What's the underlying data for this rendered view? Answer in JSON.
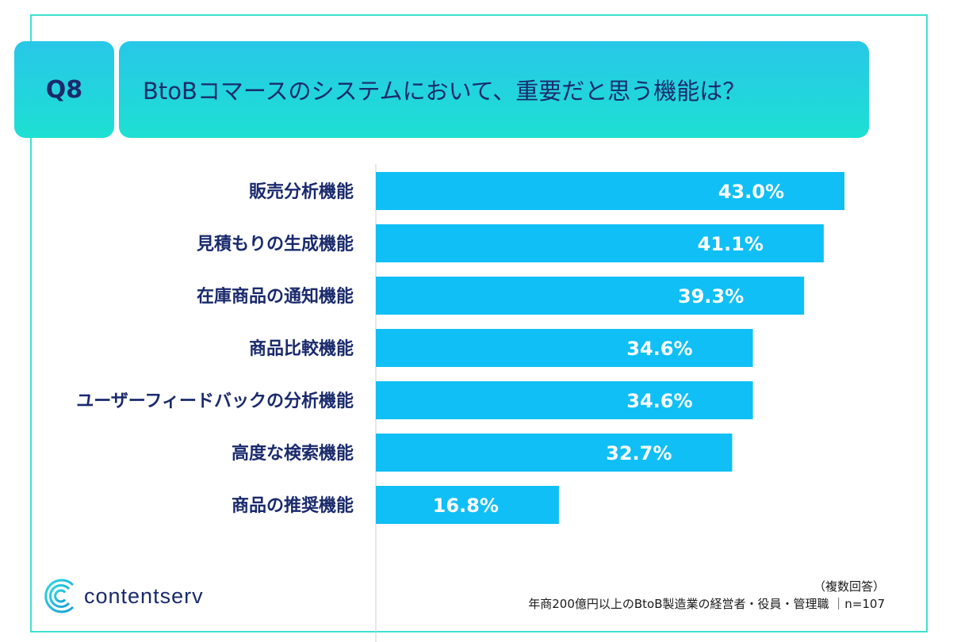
{
  "header": {
    "question_id": "Q8",
    "question_text": "BtoBコマースのシステムにおいて、重要だと思う機能は？"
  },
  "chart_data": {
    "type": "bar",
    "orientation": "horizontal",
    "categories": [
      "販売分析機能",
      "見積もりの生成機能",
      "在庫商品の通知機能",
      "商品比較機能",
      "ユーザーフィードバックの分析機能",
      "高度な検索機能",
      "商品の推奨機能"
    ],
    "values": [
      43.0,
      41.1,
      39.3,
      34.6,
      34.6,
      32.7,
      16.8
    ],
    "value_labels": [
      "43.0%",
      "41.1%",
      "39.3%",
      "34.6%",
      "34.6%",
      "32.7%",
      "16.8%"
    ],
    "unit": "%",
    "xlim": [
      0,
      43.0
    ],
    "title": "",
    "xlabel": "",
    "ylabel": ""
  },
  "footer": {
    "brand": "contentserv",
    "note_line1": "（複数回答）",
    "note_line2": "年商200億円以上のBtoB製造業の経営者・役員・管理職 ｜n=107"
  },
  "colors": {
    "bar": "#10bff5",
    "label_text": "#1a2a6c",
    "accent": "#1de0d2",
    "frame": "#3ee0d0"
  },
  "icons": {
    "logo": "contentserv-logo-icon"
  }
}
